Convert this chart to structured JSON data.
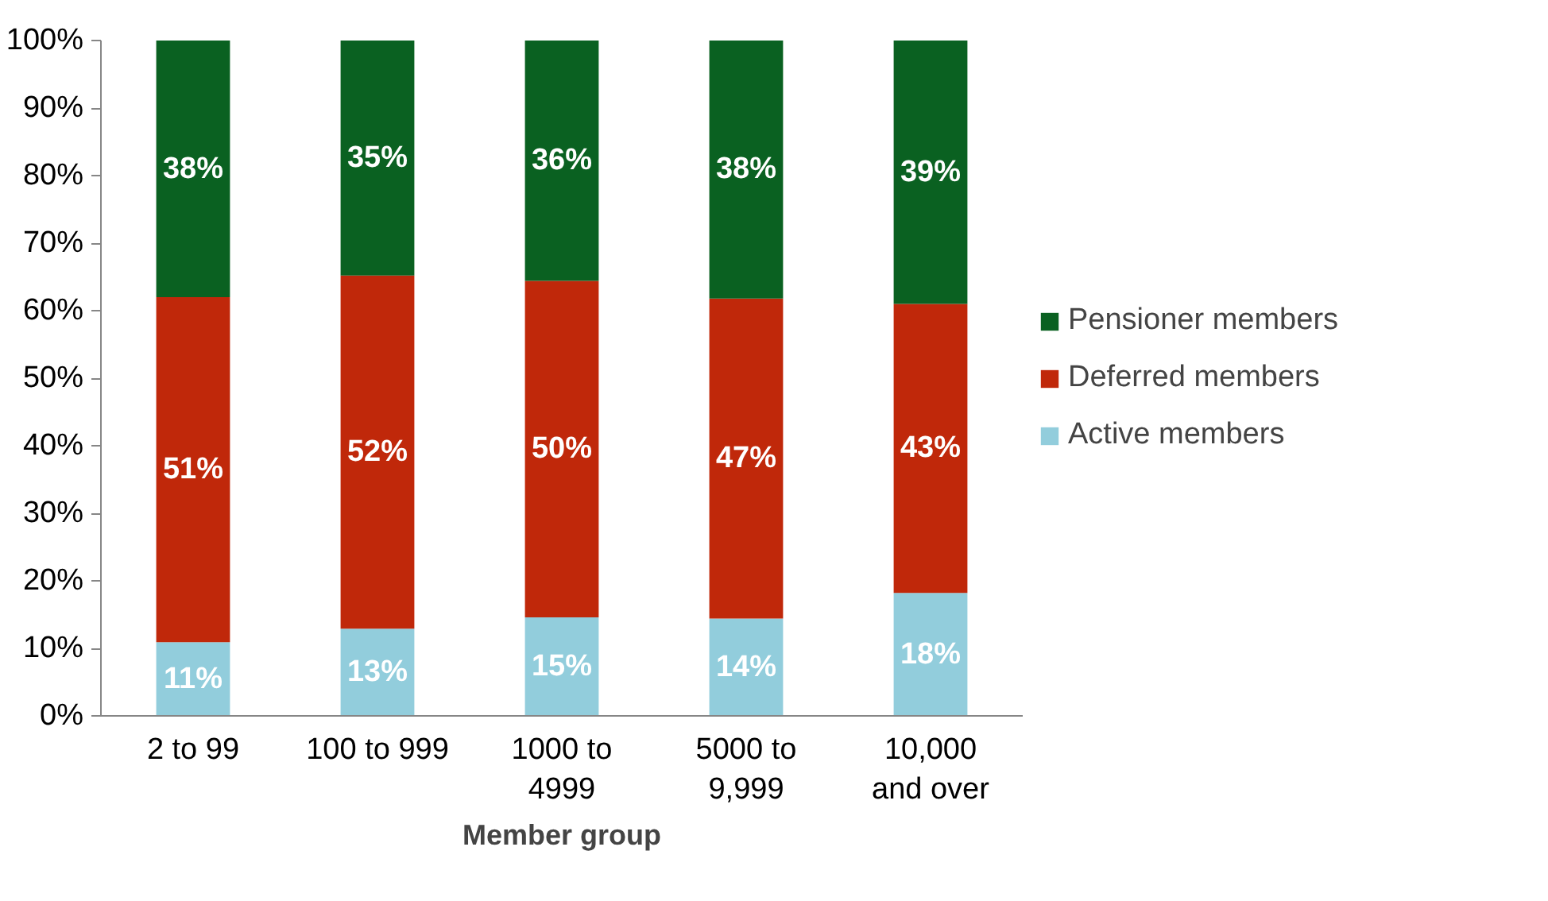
{
  "chart_data": {
    "type": "bar",
    "stacked": true,
    "xlabel": "Member group",
    "categories": [
      "2 to 99",
      "100 to 999",
      "1000 to 4999",
      "5000 to 9,999",
      "10,000 and over"
    ],
    "series": [
      {
        "name": "Active members",
        "color": "#92cddc",
        "values": [
          10.9,
          12.9,
          14.6,
          14.4,
          18.2
        ],
        "value_labels": [
          "11%",
          "13%",
          "15%",
          "14%",
          "18%"
        ]
      },
      {
        "name": "Deferred members",
        "color": "#c0280a",
        "values": [
          51.1,
          52.3,
          49.8,
          47.4,
          42.8
        ],
        "value_labels": [
          "51%",
          "52%",
          "50%",
          "47%",
          "43%"
        ]
      },
      {
        "name": "Pensioner members",
        "color": "#0a6121",
        "values": [
          38.0,
          34.8,
          35.6,
          38.2,
          39.0
        ],
        "value_labels": [
          "38%",
          "35%",
          "36%",
          "38%",
          "39%"
        ]
      }
    ],
    "ylim": [
      0,
      100
    ],
    "yticks": [
      {
        "value": 0,
        "label": "0%"
      },
      {
        "value": 10,
        "label": "10%"
      },
      {
        "value": 20,
        "label": "20%"
      },
      {
        "value": 30,
        "label": "30%"
      },
      {
        "value": 40,
        "label": "40%"
      },
      {
        "value": 50,
        "label": "50%"
      },
      {
        "value": 60,
        "label": "60%"
      },
      {
        "value": 70,
        "label": "70%"
      },
      {
        "value": 80,
        "label": "80%"
      },
      {
        "value": 90,
        "label": "90%"
      },
      {
        "value": 100,
        "label": "100%"
      }
    ],
    "grid": false,
    "legend": "right"
  }
}
